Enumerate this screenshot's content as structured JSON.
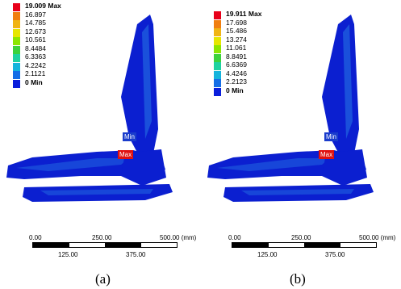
{
  "panels": [
    {
      "caption": "(a)",
      "legend": {
        "max_label": "19.009 Max",
        "levels": [
          "16.897",
          "14.785",
          "12.673",
          "10.561",
          "8.4484",
          "6.3363",
          "4.2242",
          "2.1121"
        ],
        "min_label": "0 Min"
      },
      "probe_min": "Min",
      "probe_max": "Max",
      "scale": {
        "ticks_top": [
          "0.00",
          "250.00",
          "500.00 (mm)"
        ],
        "ticks_bottom": [
          "125.00",
          "375.00"
        ]
      }
    },
    {
      "caption": "(b)",
      "legend": {
        "max_label": "19.911 Max",
        "levels": [
          "17.698",
          "15.486",
          "13.274",
          "11.061",
          "8.8491",
          "6.6369",
          "4.4246",
          "2.2123"
        ],
        "min_label": "0 Min"
      },
      "probe_min": "Min",
      "probe_max": "Max",
      "scale": {
        "ticks_top": [
          "0.00",
          "250.00",
          "500.00 (mm)"
        ],
        "ticks_bottom": [
          "125.00",
          "375.00"
        ]
      }
    }
  ],
  "colors": {
    "legend": [
      "#e8001a",
      "#f07e10",
      "#f0b414",
      "#e6e600",
      "#8ce600",
      "#3cd23c",
      "#1ed2a0",
      "#14b4dc",
      "#146ee6",
      "#0a1edc"
    ],
    "model": "#0b1fd0",
    "model_light": "#2a82e6",
    "tag_min": "#1a3ccc",
    "tag_max": "#e01010"
  }
}
